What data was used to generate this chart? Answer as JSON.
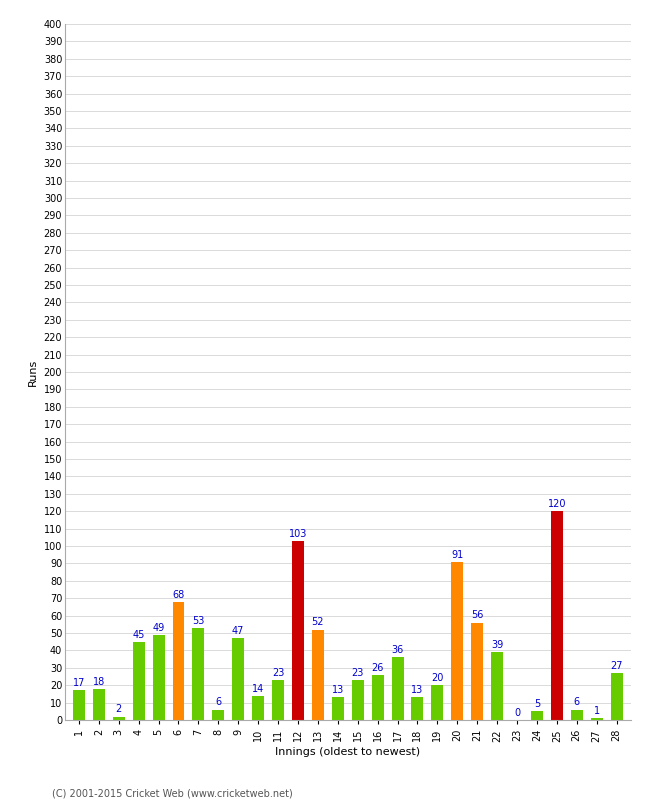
{
  "innings": [
    1,
    2,
    3,
    4,
    5,
    6,
    7,
    8,
    9,
    10,
    11,
    12,
    13,
    14,
    15,
    16,
    17,
    18,
    19,
    20,
    21,
    22,
    23,
    24,
    25,
    26,
    27,
    28
  ],
  "values": [
    17,
    18,
    2,
    45,
    49,
    68,
    53,
    6,
    47,
    14,
    23,
    103,
    52,
    13,
    23,
    26,
    36,
    13,
    20,
    91,
    56,
    39,
    0,
    5,
    120,
    6,
    1,
    27
  ],
  "colors": [
    "#66cc00",
    "#66cc00",
    "#66cc00",
    "#66cc00",
    "#66cc00",
    "#ff8800",
    "#66cc00",
    "#66cc00",
    "#66cc00",
    "#66cc00",
    "#66cc00",
    "#cc0000",
    "#ff8800",
    "#66cc00",
    "#66cc00",
    "#66cc00",
    "#66cc00",
    "#66cc00",
    "#66cc00",
    "#ff8800",
    "#ff8800",
    "#66cc00",
    "#66cc00",
    "#66cc00",
    "#cc0000",
    "#66cc00",
    "#66cc00",
    "#66cc00"
  ],
  "xlabel": "Innings (oldest to newest)",
  "ylabel": "Runs",
  "ylim": [
    0,
    400
  ],
  "yticks": [
    0,
    10,
    20,
    30,
    40,
    50,
    60,
    70,
    80,
    90,
    100,
    110,
    120,
    130,
    140,
    150,
    160,
    170,
    180,
    190,
    200,
    210,
    220,
    230,
    240,
    250,
    260,
    270,
    280,
    290,
    300,
    310,
    320,
    330,
    340,
    350,
    360,
    370,
    380,
    390,
    400
  ],
  "label_color": "#0000cc",
  "bg_color": "#ffffff",
  "grid_color": "#cccccc",
  "footer": "(C) 2001-2015 Cricket Web (www.cricketweb.net)",
  "bar_width": 0.6,
  "label_fontsize": 7,
  "tick_fontsize": 7,
  "axis_label_fontsize": 8
}
